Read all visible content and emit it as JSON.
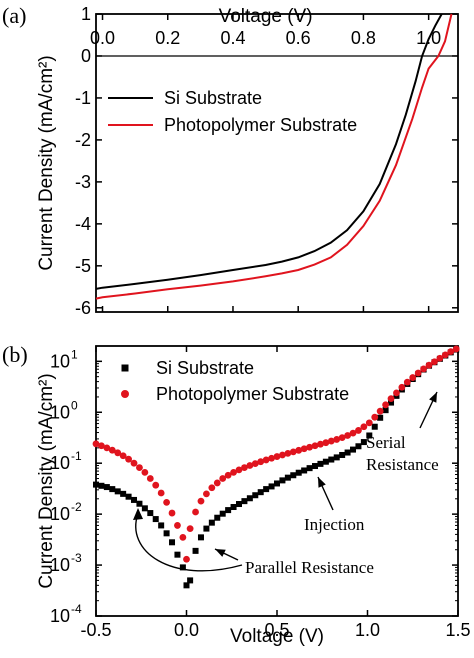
{
  "panel_a_label": "(a)",
  "panel_b_label": "(b)",
  "chart_data": [
    {
      "type": "line",
      "panel": "(a)",
      "xlabel": "Voltage (V)",
      "ylabel": "Current Density (mA/cm²)",
      "xlim": [
        -0.02,
        1.09
      ],
      "ylim": [
        -6.1,
        1.0
      ],
      "x_axis_position": "top",
      "xticks": [
        0.0,
        0.2,
        0.4,
        0.6,
        0.8,
        1.0
      ],
      "xtick_labels": [
        "0.0",
        "0.2",
        "0.4",
        "0.6",
        "0.8",
        "1.0"
      ],
      "yticks": [
        1,
        0,
        -1,
        -2,
        -3,
        -4,
        -5,
        -6
      ],
      "ytick_labels": [
        "1",
        "0",
        "-1",
        "-2",
        "-3",
        "-4",
        "-5",
        "-6"
      ],
      "zero_line": true,
      "legend_position": "left-upper",
      "series": [
        {
          "name": "Si Substrate",
          "color": "#000000",
          "x": [
            -0.02,
            0.0,
            0.1,
            0.2,
            0.3,
            0.4,
            0.5,
            0.55,
            0.6,
            0.65,
            0.7,
            0.75,
            0.8,
            0.85,
            0.9,
            0.93,
            0.96,
            0.98,
            1.0,
            1.02,
            1.04
          ],
          "y": [
            -5.55,
            -5.52,
            -5.43,
            -5.33,
            -5.22,
            -5.1,
            -4.98,
            -4.9,
            -4.8,
            -4.65,
            -4.45,
            -4.15,
            -3.7,
            -3.05,
            -2.1,
            -1.4,
            -0.6,
            0.0,
            0.4,
            0.72,
            1.0
          ]
        },
        {
          "name": "Photopolymer Substrate",
          "color": "#e0141e",
          "x": [
            -0.02,
            0.0,
            0.1,
            0.2,
            0.3,
            0.4,
            0.5,
            0.55,
            0.6,
            0.65,
            0.7,
            0.75,
            0.8,
            0.85,
            0.9,
            0.95,
            0.98,
            1.0,
            1.03,
            1.05,
            1.07
          ],
          "y": [
            -5.78,
            -5.75,
            -5.66,
            -5.56,
            -5.47,
            -5.37,
            -5.25,
            -5.18,
            -5.1,
            -4.97,
            -4.8,
            -4.5,
            -4.05,
            -3.45,
            -2.6,
            -1.5,
            -0.75,
            -0.3,
            0.0,
            0.35,
            1.0
          ]
        }
      ]
    },
    {
      "type": "scatter",
      "panel": "(b)",
      "xlabel": "Voltage (V)",
      "ylabel": "Current Density (mA/cm²)",
      "yscale": "log",
      "xlim": [
        -0.5,
        1.5
      ],
      "ylim": [
        0.0001,
        20
      ],
      "xticks": [
        -0.5,
        0.0,
        0.5,
        1.0,
        1.5
      ],
      "xtick_labels": [
        "-0.5",
        "0.0",
        "0.5",
        "1.0",
        "1.5"
      ],
      "yticks": [
        0.0001,
        0.001,
        0.01,
        0.1,
        1,
        10
      ],
      "ytick_base": "10",
      "ytick_exponents": [
        "-4",
        "-3",
        "-2",
        "-1",
        "0",
        "1"
      ],
      "legend_position": "top-left",
      "series": [
        {
          "name": "Si Substrate",
          "color": "#000000",
          "marker": "square",
          "x": [
            -0.5,
            -0.47,
            -0.44,
            -0.41,
            -0.38,
            -0.35,
            -0.32,
            -0.29,
            -0.26,
            -0.23,
            -0.2,
            -0.17,
            -0.14,
            -0.11,
            -0.08,
            -0.05,
            -0.02,
            0.0,
            0.02,
            0.05,
            0.08,
            0.11,
            0.14,
            0.17,
            0.2,
            0.23,
            0.26,
            0.29,
            0.32,
            0.35,
            0.38,
            0.41,
            0.44,
            0.47,
            0.5,
            0.53,
            0.56,
            0.59,
            0.62,
            0.65,
            0.68,
            0.71,
            0.74,
            0.77,
            0.8,
            0.83,
            0.86,
            0.89,
            0.92,
            0.95,
            0.98,
            1.01,
            1.04,
            1.07,
            1.1,
            1.13,
            1.16,
            1.19,
            1.22,
            1.25,
            1.28,
            1.31,
            1.34,
            1.37,
            1.4,
            1.43,
            1.46,
            1.49
          ],
          "y": [
            0.038,
            0.036,
            0.034,
            0.031,
            0.028,
            0.025,
            0.022,
            0.019,
            0.016,
            0.013,
            0.0105,
            0.008,
            0.006,
            0.0042,
            0.0028,
            0.0016,
            0.0009,
            0.0004,
            0.0005,
            0.0019,
            0.0035,
            0.0052,
            0.0068,
            0.0085,
            0.0102,
            0.012,
            0.0138,
            0.0158,
            0.018,
            0.0205,
            0.0235,
            0.027,
            0.031,
            0.035,
            0.04,
            0.046,
            0.052,
            0.058,
            0.065,
            0.072,
            0.08,
            0.088,
            0.097,
            0.107,
            0.118,
            0.13,
            0.145,
            0.162,
            0.185,
            0.215,
            0.26,
            0.35,
            0.52,
            0.78,
            1.1,
            1.55,
            2.1,
            2.8,
            3.6,
            4.5,
            5.6,
            6.9,
            8.2,
            9.6,
            11.2,
            13.0,
            15.0,
            17.0
          ]
        },
        {
          "name": "Photopolymer Substrate",
          "color": "#e0141e",
          "marker": "circle",
          "x": [
            -0.5,
            -0.47,
            -0.44,
            -0.41,
            -0.38,
            -0.35,
            -0.32,
            -0.29,
            -0.26,
            -0.23,
            -0.2,
            -0.17,
            -0.14,
            -0.11,
            -0.08,
            -0.05,
            -0.02,
            0.0,
            0.02,
            0.05,
            0.08,
            0.11,
            0.14,
            0.17,
            0.2,
            0.23,
            0.26,
            0.29,
            0.32,
            0.35,
            0.38,
            0.41,
            0.44,
            0.47,
            0.5,
            0.53,
            0.56,
            0.59,
            0.62,
            0.65,
            0.68,
            0.71,
            0.74,
            0.77,
            0.8,
            0.83,
            0.86,
            0.89,
            0.92,
            0.95,
            0.98,
            1.01,
            1.04,
            1.07,
            1.1,
            1.13,
            1.16,
            1.19,
            1.22,
            1.25,
            1.28,
            1.31,
            1.34,
            1.37,
            1.4,
            1.43,
            1.46,
            1.49
          ],
          "y": [
            0.24,
            0.22,
            0.2,
            0.18,
            0.16,
            0.14,
            0.12,
            0.1,
            0.082,
            0.066,
            0.05,
            0.037,
            0.026,
            0.017,
            0.0105,
            0.006,
            0.0035,
            0.0013,
            0.0052,
            0.011,
            0.018,
            0.025,
            0.033,
            0.041,
            0.05,
            0.058,
            0.066,
            0.074,
            0.082,
            0.09,
            0.098,
            0.107,
            0.116,
            0.125,
            0.135,
            0.145,
            0.156,
            0.167,
            0.179,
            0.192,
            0.206,
            0.22,
            0.236,
            0.253,
            0.272,
            0.293,
            0.318,
            0.35,
            0.39,
            0.44,
            0.52,
            0.62,
            0.8,
            1.05,
            1.4,
            1.85,
            2.4,
            3.1,
            3.9,
            4.8,
            5.9,
            7.1,
            8.4,
            9.8,
            11.5,
            13.4,
            15.5,
            17.5
          ]
        }
      ],
      "annotations": [
        {
          "text": "Serial",
          "font": "serif"
        },
        {
          "text": "Resistance",
          "font": "serif"
        },
        {
          "text": "Injection",
          "font": "serif"
        },
        {
          "text": "Parallel Resistance",
          "font": "serif"
        }
      ]
    }
  ]
}
